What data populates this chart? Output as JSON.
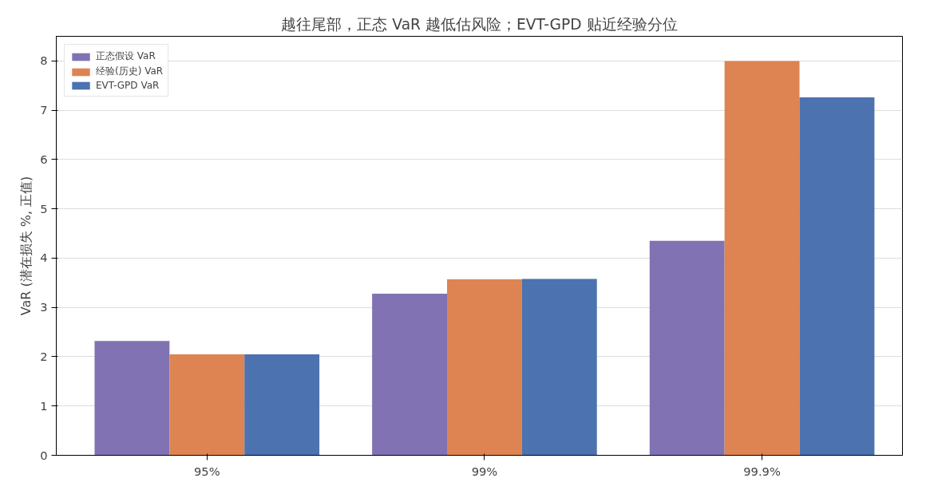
{
  "chart_data": {
    "type": "bar",
    "title": "越往尾部，正态 VaR 越低估风险；EVT-GPD 贴近经验分位",
    "ylabel": "VaR (潜在损失 %, 正值)",
    "categories": [
      "95%",
      "99%",
      "99.9%"
    ],
    "series": [
      {
        "name": "正态假设 VaR",
        "color": "#8172b3",
        "values": [
          2.32,
          3.28,
          4.35
        ]
      },
      {
        "name": "经验(历史) VaR",
        "color": "#dd8452",
        "values": [
          2.05,
          3.57,
          8.0
        ]
      },
      {
        "name": "EVT-GPD VaR",
        "color": "#4c72b0",
        "values": [
          2.05,
          3.58,
          7.26
        ]
      }
    ],
    "ylim": [
      0,
      8.5
    ],
    "yticks": [
      0,
      1,
      2,
      3,
      4,
      5,
      6,
      7,
      8
    ],
    "grid": "y",
    "legend": "top left"
  }
}
